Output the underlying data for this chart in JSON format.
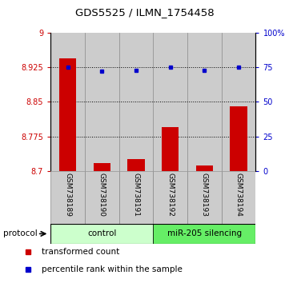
{
  "title": "GDS5525 / ILMN_1754458",
  "categories": [
    "GSM738189",
    "GSM738190",
    "GSM738191",
    "GSM738192",
    "GSM738193",
    "GSM738194"
  ],
  "bar_values": [
    8.945,
    8.718,
    8.727,
    8.795,
    8.712,
    8.84
  ],
  "dot_values": [
    75,
    72,
    73,
    75,
    73,
    75
  ],
  "ylim_left": [
    8.7,
    9.0
  ],
  "ylim_right": [
    0,
    100
  ],
  "yticks_left": [
    8.7,
    8.775,
    8.85,
    8.925,
    9.0
  ],
  "ytick_labels_left": [
    "8.7",
    "8.775",
    "8.85",
    "8.925",
    "9"
  ],
  "yticks_right": [
    0,
    25,
    50,
    75,
    100
  ],
  "ytick_labels_right": [
    "0",
    "25",
    "50",
    "75",
    "100%"
  ],
  "bar_color": "#cc0000",
  "dot_color": "#0000cc",
  "bar_bottom": 8.7,
  "legend_items": [
    {
      "color": "#cc0000",
      "label": "transformed count"
    },
    {
      "color": "#0000cc",
      "label": "percentile rank within the sample"
    }
  ],
  "protocol_label": "protocol",
  "gray_bg": "#cccccc",
  "gray_border": "#888888",
  "control_color": "#ccffcc",
  "mir_color": "#66ee66"
}
